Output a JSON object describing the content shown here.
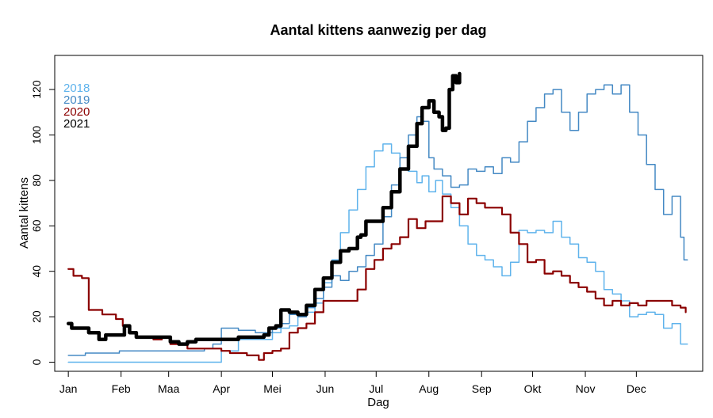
{
  "chart_data": {
    "type": "line",
    "title": "Aantal kittens aanwezig per dag",
    "xlabel": "Dag",
    "ylabel": "Aantal kittens",
    "xlim": [
      -8,
      373
    ],
    "ylim": [
      -4,
      135
    ],
    "x_ticks": [
      {
        "label": "Jan",
        "value": 0
      },
      {
        "label": "Feb",
        "value": 31
      },
      {
        "label": "Maa",
        "value": 59
      },
      {
        "label": "Apr",
        "value": 90
      },
      {
        "label": "Mei",
        "value": 120
      },
      {
        "label": "Jun",
        "value": 151
      },
      {
        "label": "Jul",
        "value": 181
      },
      {
        "label": "Aug",
        "value": 212
      },
      {
        "label": "Sep",
        "value": 243
      },
      {
        "label": "Okt",
        "value": 273
      },
      {
        "label": "Nov",
        "value": 304
      },
      {
        "label": "Dec",
        "value": 334
      }
    ],
    "y_ticks": [
      0,
      20,
      40,
      60,
      80,
      100,
      120
    ],
    "legend_position": "top-left",
    "series": [
      {
        "name": "2018",
        "color": "#5fb3ec",
        "width": 1.5,
        "points": [
          [
            0,
            0
          ],
          [
            60,
            0
          ],
          [
            88,
            0
          ],
          [
            90,
            5
          ],
          [
            95,
            5
          ],
          [
            100,
            10
          ],
          [
            110,
            10
          ],
          [
            120,
            13
          ],
          [
            125,
            15
          ],
          [
            130,
            16
          ],
          [
            135,
            20
          ],
          [
            140,
            22
          ],
          [
            145,
            26
          ],
          [
            150,
            35
          ],
          [
            155,
            45
          ],
          [
            160,
            57
          ],
          [
            165,
            67
          ],
          [
            170,
            76
          ],
          [
            175,
            86
          ],
          [
            180,
            93
          ],
          [
            185,
            96
          ],
          [
            190,
            92
          ],
          [
            195,
            85
          ],
          [
            200,
            84
          ],
          [
            205,
            79
          ],
          [
            208,
            82
          ],
          [
            212,
            75
          ],
          [
            216,
            80
          ],
          [
            220,
            74
          ],
          [
            225,
            68
          ],
          [
            230,
            60
          ],
          [
            235,
            52
          ],
          [
            240,
            47
          ],
          [
            245,
            45
          ],
          [
            250,
            42
          ],
          [
            255,
            38
          ],
          [
            260,
            44
          ],
          [
            265,
            58
          ],
          [
            270,
            57
          ],
          [
            275,
            58
          ],
          [
            280,
            57
          ],
          [
            285,
            62
          ],
          [
            290,
            55
          ],
          [
            295,
            52
          ],
          [
            300,
            46
          ],
          [
            305,
            44
          ],
          [
            310,
            40
          ],
          [
            315,
            32
          ],
          [
            320,
            30
          ],
          [
            325,
            27
          ],
          [
            330,
            20
          ],
          [
            335,
            21
          ],
          [
            340,
            22
          ],
          [
            345,
            21
          ],
          [
            350,
            15
          ],
          [
            355,
            17
          ],
          [
            360,
            8
          ],
          [
            364,
            8
          ]
        ]
      },
      {
        "name": "2019",
        "color": "#4489c4",
        "width": 1.5,
        "points": [
          [
            0,
            3
          ],
          [
            5,
            3
          ],
          [
            10,
            4
          ],
          [
            20,
            4
          ],
          [
            30,
            5
          ],
          [
            40,
            5
          ],
          [
            60,
            5
          ],
          [
            80,
            6
          ],
          [
            85,
            8
          ],
          [
            90,
            15
          ],
          [
            95,
            15
          ],
          [
            100,
            14
          ],
          [
            110,
            13
          ],
          [
            120,
            15
          ],
          [
            125,
            17
          ],
          [
            130,
            21
          ],
          [
            135,
            20
          ],
          [
            140,
            24
          ],
          [
            145,
            28
          ],
          [
            150,
            33
          ],
          [
            155,
            38
          ],
          [
            160,
            36
          ],
          [
            165,
            40
          ],
          [
            170,
            42
          ],
          [
            175,
            47
          ],
          [
            180,
            52
          ],
          [
            185,
            64
          ],
          [
            190,
            78
          ],
          [
            195,
            90
          ],
          [
            200,
            100
          ],
          [
            205,
            108
          ],
          [
            208,
            106
          ],
          [
            212,
            90
          ],
          [
            215,
            85
          ],
          [
            220,
            82
          ],
          [
            225,
            77
          ],
          [
            230,
            78
          ],
          [
            235,
            85
          ],
          [
            240,
            84
          ],
          [
            245,
            86
          ],
          [
            250,
            83
          ],
          [
            255,
            90
          ],
          [
            260,
            88
          ],
          [
            265,
            97
          ],
          [
            270,
            106
          ],
          [
            275,
            112
          ],
          [
            280,
            118
          ],
          [
            285,
            120
          ],
          [
            290,
            110
          ],
          [
            295,
            102
          ],
          [
            300,
            110
          ],
          [
            305,
            118
          ],
          [
            310,
            120
          ],
          [
            315,
            122
          ],
          [
            320,
            118
          ],
          [
            325,
            122
          ],
          [
            330,
            110
          ],
          [
            335,
            100
          ],
          [
            340,
            87
          ],
          [
            345,
            76
          ],
          [
            350,
            65
          ],
          [
            355,
            73
          ],
          [
            360,
            55
          ],
          [
            362,
            45
          ],
          [
            364,
            45
          ]
        ]
      },
      {
        "name": "2020",
        "color": "#8b0000",
        "width": 2.2,
        "points": [
          [
            0,
            41
          ],
          [
            3,
            38
          ],
          [
            8,
            37
          ],
          [
            12,
            23
          ],
          [
            16,
            23
          ],
          [
            20,
            21
          ],
          [
            25,
            21
          ],
          [
            28,
            19
          ],
          [
            32,
            16
          ],
          [
            36,
            13
          ],
          [
            40,
            11
          ],
          [
            45,
            11
          ],
          [
            50,
            10
          ],
          [
            55,
            11
          ],
          [
            60,
            8
          ],
          [
            65,
            8
          ],
          [
            70,
            6
          ],
          [
            80,
            6
          ],
          [
            90,
            5
          ],
          [
            95,
            4
          ],
          [
            100,
            4
          ],
          [
            105,
            3
          ],
          [
            110,
            3
          ],
          [
            112,
            1
          ],
          [
            115,
            4
          ],
          [
            120,
            5
          ],
          [
            125,
            6
          ],
          [
            130,
            13
          ],
          [
            135,
            15
          ],
          [
            140,
            17
          ],
          [
            145,
            22
          ],
          [
            150,
            27
          ],
          [
            160,
            27
          ],
          [
            165,
            27
          ],
          [
            170,
            32
          ],
          [
            175,
            41
          ],
          [
            180,
            45
          ],
          [
            185,
            50
          ],
          [
            190,
            52
          ],
          [
            195,
            55
          ],
          [
            200,
            63
          ],
          [
            205,
            59
          ],
          [
            210,
            62
          ],
          [
            215,
            62
          ],
          [
            220,
            73
          ],
          [
            225,
            70
          ],
          [
            230,
            65
          ],
          [
            235,
            72
          ],
          [
            240,
            70
          ],
          [
            245,
            68
          ],
          [
            250,
            68
          ],
          [
            255,
            65
          ],
          [
            260,
            57
          ],
          [
            265,
            52
          ],
          [
            270,
            44
          ],
          [
            275,
            45
          ],
          [
            280,
            39
          ],
          [
            285,
            40
          ],
          [
            290,
            38
          ],
          [
            295,
            35
          ],
          [
            300,
            33
          ],
          [
            305,
            31
          ],
          [
            310,
            28
          ],
          [
            315,
            25
          ],
          [
            320,
            27
          ],
          [
            325,
            25
          ],
          [
            330,
            26
          ],
          [
            335,
            25
          ],
          [
            340,
            27
          ],
          [
            350,
            27
          ],
          [
            355,
            25
          ],
          [
            360,
            24
          ],
          [
            363,
            22
          ]
        ]
      },
      {
        "name": "2021",
        "color": "#000000",
        "width": 4.5,
        "points": [
          [
            0,
            17
          ],
          [
            2,
            15
          ],
          [
            8,
            15
          ],
          [
            12,
            13
          ],
          [
            18,
            10
          ],
          [
            22,
            12
          ],
          [
            30,
            12
          ],
          [
            33,
            16
          ],
          [
            36,
            13
          ],
          [
            40,
            11
          ],
          [
            45,
            11
          ],
          [
            55,
            11
          ],
          [
            60,
            9
          ],
          [
            65,
            8
          ],
          [
            70,
            9
          ],
          [
            75,
            10
          ],
          [
            80,
            10
          ],
          [
            90,
            10
          ],
          [
            95,
            10
          ],
          [
            100,
            11
          ],
          [
            110,
            11
          ],
          [
            115,
            12
          ],
          [
            118,
            15
          ],
          [
            122,
            16
          ],
          [
            125,
            23
          ],
          [
            130,
            22
          ],
          [
            135,
            21
          ],
          [
            140,
            25
          ],
          [
            145,
            32
          ],
          [
            150,
            37
          ],
          [
            155,
            44
          ],
          [
            160,
            49
          ],
          [
            165,
            50
          ],
          [
            170,
            55
          ],
          [
            172,
            56
          ],
          [
            175,
            62
          ],
          [
            180,
            62
          ],
          [
            185,
            68
          ],
          [
            190,
            75
          ],
          [
            195,
            85
          ],
          [
            200,
            95
          ],
          [
            205,
            105
          ],
          [
            208,
            112
          ],
          [
            212,
            115
          ],
          [
            215,
            110
          ],
          [
            218,
            108
          ],
          [
            220,
            102
          ],
          [
            222,
            103
          ],
          [
            224,
            120
          ],
          [
            226,
            126
          ],
          [
            228,
            123
          ],
          [
            230,
            127
          ]
        ]
      }
    ]
  }
}
